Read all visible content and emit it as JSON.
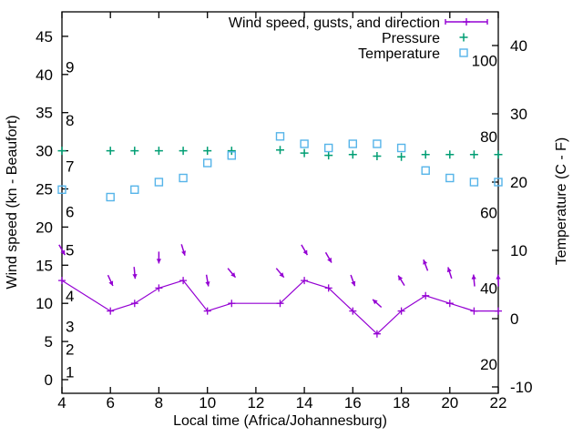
{
  "figure": {
    "background": "#ffffff",
    "axis_color": "#000000",
    "wind_color": "#9400d3",
    "pressure_color": "#009e73",
    "temperature_color": "#56b4e9"
  },
  "axis_titles": {
    "x": "Local time (Africa/Johannesburg)",
    "y_left": "Wind speed (kn - Beaufort)",
    "y_right": "Temperature (C - F)"
  },
  "legend": {
    "position": "top-right-inside",
    "items": [
      {
        "label": "Wind speed, gusts, and direction",
        "marker": "line-plus",
        "color": "#9400d3"
      },
      {
        "label": "Pressure",
        "marker": "plus",
        "color": "#009e73"
      },
      {
        "label": "Temperature",
        "marker": "square",
        "color": "#56b4e9"
      }
    ]
  },
  "chart_data": {
    "type": "line",
    "title": "",
    "xlabel": "Local time (Africa/Johannesburg)",
    "ylabel_left": "Wind speed (kn - Beaufort)",
    "ylabel_right": "Temperature (C - F)",
    "grid": false,
    "x_hours": [
      4,
      6,
      7,
      8,
      9,
      10,
      11,
      13,
      14,
      15,
      16,
      17,
      18,
      19,
      20,
      21,
      22
    ],
    "series": [
      {
        "name": "Wind speed (kn)",
        "axis": "left",
        "marker": "plus",
        "line": true,
        "color": "#9400d3",
        "values": [
          13,
          9,
          10,
          12,
          13,
          9,
          10,
          10,
          13,
          12,
          9,
          6,
          9,
          11,
          10,
          9,
          9
        ]
      },
      {
        "name": "Wind gusts and direction (arrow markers, kn / deg)",
        "axis": "left",
        "marker": "arrow",
        "line": false,
        "color": "#9400d3",
        "values": [
          17,
          13,
          14,
          16,
          17,
          13,
          14,
          14,
          17,
          16,
          13,
          10,
          13,
          15,
          14,
          13,
          13
        ],
        "directions_deg": [
          150,
          155,
          175,
          180,
          163,
          170,
          140,
          140,
          150,
          150,
          160,
          312,
          328,
          339,
          342,
          355,
          357
        ]
      },
      {
        "name": "Pressure (inHg)",
        "axis": "left",
        "marker": "plus",
        "line": false,
        "color": "#009e73",
        "values": [
          30.0,
          30.0,
          30.0,
          30.0,
          30.0,
          30.0,
          30.0,
          30.1,
          29.7,
          29.4,
          29.5,
          29.3,
          29.2,
          29.5,
          29.5,
          29.5,
          29.5
        ]
      },
      {
        "name": "Temperature (C)",
        "axis": "right",
        "marker": "square",
        "line": false,
        "color": "#56b4e9",
        "values": [
          18.9,
          17.8,
          18.9,
          20.0,
          20.6,
          22.8,
          23.9,
          26.7,
          25.6,
          25.0,
          25.6,
          25.6,
          25.0,
          21.7,
          20.6,
          20.0,
          20.0
        ],
        "values_f": [
          66,
          64,
          66,
          68,
          69,
          73,
          75,
          80,
          78,
          77,
          78,
          78,
          77,
          71,
          69,
          68,
          68
        ]
      }
    ],
    "axes": {
      "x": {
        "min": 4,
        "max": 22,
        "ticks": [
          4,
          6,
          8,
          10,
          12,
          14,
          16,
          18,
          20,
          22
        ]
      },
      "y_left": {
        "ticks": [
          0,
          5,
          10,
          15,
          20,
          25,
          30,
          35,
          40,
          45
        ],
        "beaufort": [
          {
            "b": 1,
            "kn": 1
          },
          {
            "b": 2,
            "kn": 4
          },
          {
            "b": 3,
            "kn": 7
          },
          {
            "b": 4,
            "kn": 11
          },
          {
            "b": 5,
            "kn": 17
          },
          {
            "b": 6,
            "kn": 22
          },
          {
            "b": 7,
            "kn": 28
          },
          {
            "b": 8,
            "kn": 34
          },
          {
            "b": 9,
            "kn": 41
          }
        ]
      },
      "y_right": {
        "ticks_c": [
          -10,
          0,
          10,
          20,
          30,
          40
        ],
        "labels_f": [
          20,
          40,
          60,
          80,
          100
        ]
      }
    }
  }
}
